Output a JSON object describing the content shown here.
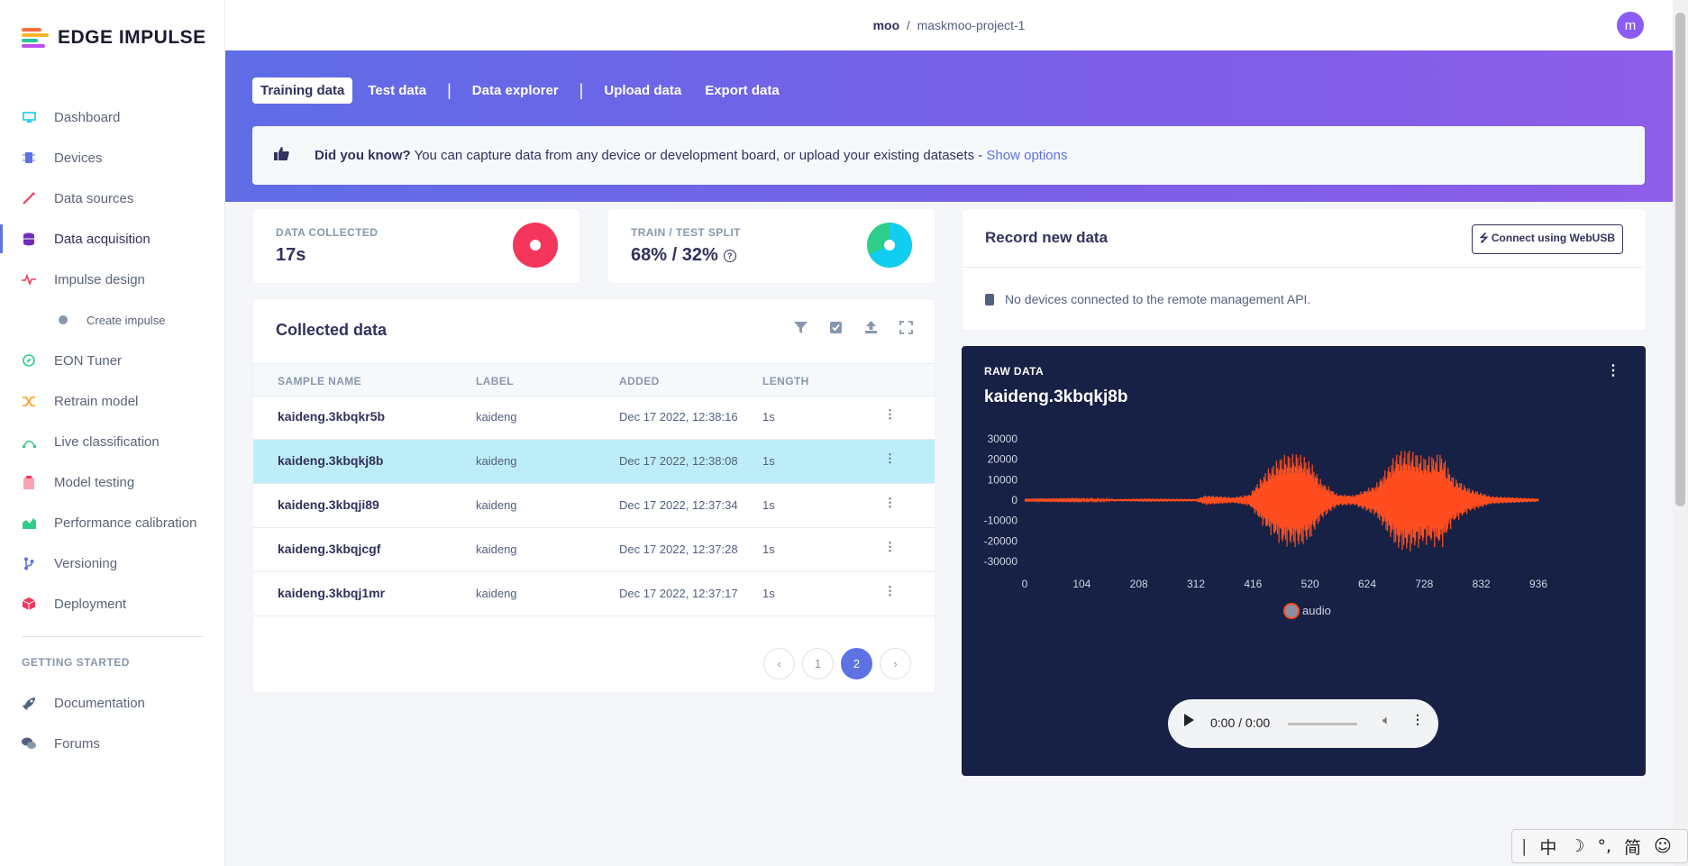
{
  "brand": {
    "logo_text": "EDGE IMPULSE",
    "logo_colors": [
      "#f96f3b",
      "#f5b52e",
      "#28c6a0",
      "#5e72e4",
      "#c04ef0"
    ]
  },
  "sidebar": {
    "items": [
      {
        "label": "Dashboard",
        "icon": "monitor-icon",
        "color": "#11cdef"
      },
      {
        "label": "Devices",
        "icon": "chip-icon",
        "color": "#5e72e4"
      },
      {
        "label": "Data sources",
        "icon": "wand-icon",
        "color": "#f5365c"
      },
      {
        "label": "Data acquisition",
        "icon": "database-icon",
        "color": "#6f2db8"
      },
      {
        "label": "Impulse design",
        "icon": "pulse-icon",
        "color": "#f5365c"
      },
      {
        "label": "Create impulse",
        "icon": "dot-icon",
        "color": "#8898aa"
      },
      {
        "label": "EON Tuner",
        "icon": "compass-icon",
        "color": "#2dce89"
      },
      {
        "label": "Retrain model",
        "icon": "shuffle-icon",
        "color": "#fb9a1a"
      },
      {
        "label": "Live classification",
        "icon": "bezier-icon",
        "color": "#2dce89"
      },
      {
        "label": "Model testing",
        "icon": "clipboard-icon",
        "color": "#f5365c"
      },
      {
        "label": "Performance calibration",
        "icon": "chart-icon",
        "color": "#2dce89"
      },
      {
        "label": "Versioning",
        "icon": "branch-icon",
        "color": "#5e72e4"
      },
      {
        "label": "Deployment",
        "icon": "box-icon",
        "color": "#f5365c"
      }
    ],
    "getting_started": "GETTING STARTED",
    "help_items": [
      {
        "label": "Documentation",
        "icon": "rocket-icon"
      },
      {
        "label": "Forums",
        "icon": "chat-icon"
      }
    ]
  },
  "topbar": {
    "user": "moo",
    "separator": "/",
    "project": "maskmoo-project-1",
    "avatar_letter": "m"
  },
  "tabs": [
    "Training data",
    "Test data",
    "Data explorer",
    "Upload data",
    "Export data"
  ],
  "tip": {
    "bold": "Did you know?",
    "text": " You can capture data from any device or development board, or upload your existing datasets - ",
    "link": "Show options"
  },
  "stats": {
    "collected_title": "DATA COLLECTED",
    "collected_value": "17s",
    "split_title": "TRAIN / TEST SPLIT",
    "split_value": "68% / 32%",
    "split_train_fraction": 0.68
  },
  "collected": {
    "title": "Collected data",
    "columns": [
      "SAMPLE NAME",
      "LABEL",
      "ADDED",
      "LENGTH"
    ],
    "rows": [
      {
        "name": "kaideng.3kbqkr5b",
        "label": "kaideng",
        "added": "Dec 17 2022, 12:38:16",
        "length": "1s"
      },
      {
        "name": "kaideng.3kbqkj8b",
        "label": "kaideng",
        "added": "Dec 17 2022, 12:38:08",
        "length": "1s"
      },
      {
        "name": "kaideng.3kbqji89",
        "label": "kaideng",
        "added": "Dec 17 2022, 12:37:34",
        "length": "1s"
      },
      {
        "name": "kaideng.3kbqjcgf",
        "label": "kaideng",
        "added": "Dec 17 2022, 12:37:28",
        "length": "1s"
      },
      {
        "name": "kaideng.3kbqj1mr",
        "label": "kaideng",
        "added": "Dec 17 2022, 12:37:17",
        "length": "1s"
      }
    ],
    "pages": [
      "1",
      "2"
    ],
    "current_page": "2"
  },
  "record": {
    "title": "Record new data",
    "webusb_label": "Connect using WebUSB",
    "message": "No devices connected to the remote management API."
  },
  "raw": {
    "label": "RAW DATA",
    "title": "kaideng.3kbqkj8b",
    "legend": "audio",
    "player_time": "0:00 / 0:00"
  },
  "chart_data": {
    "type": "line",
    "title": "",
    "series": [
      {
        "name": "audio",
        "color": "#ff4d1f"
      }
    ],
    "x_ticks": [
      0,
      104,
      208,
      312,
      416,
      520,
      624,
      728,
      832,
      936
    ],
    "y_ticks": [
      30000,
      20000,
      10000,
      0,
      -10000,
      -20000,
      -30000
    ],
    "ylim": [
      -30000,
      30000
    ],
    "xlim": [
      0,
      936
    ],
    "envelope": [
      {
        "x": 0,
        "amp": 300
      },
      {
        "x": 160,
        "amp": 500
      },
      {
        "x": 220,
        "amp": 800
      },
      {
        "x": 312,
        "amp": 600
      },
      {
        "x": 330,
        "amp": 2500
      },
      {
        "x": 380,
        "amp": 1500
      },
      {
        "x": 410,
        "amp": 3000
      },
      {
        "x": 440,
        "amp": 15000
      },
      {
        "x": 470,
        "amp": 23000
      },
      {
        "x": 500,
        "amp": 24000
      },
      {
        "x": 520,
        "amp": 20000
      },
      {
        "x": 540,
        "amp": 10000
      },
      {
        "x": 570,
        "amp": 3000
      },
      {
        "x": 600,
        "amp": 2500
      },
      {
        "x": 640,
        "amp": 8000
      },
      {
        "x": 680,
        "amp": 25000
      },
      {
        "x": 700,
        "amp": 26000
      },
      {
        "x": 730,
        "amp": 22000
      },
      {
        "x": 760,
        "amp": 24000
      },
      {
        "x": 780,
        "amp": 12000
      },
      {
        "x": 810,
        "amp": 6000
      },
      {
        "x": 850,
        "amp": 2000
      },
      {
        "x": 936,
        "amp": 800
      }
    ]
  }
}
